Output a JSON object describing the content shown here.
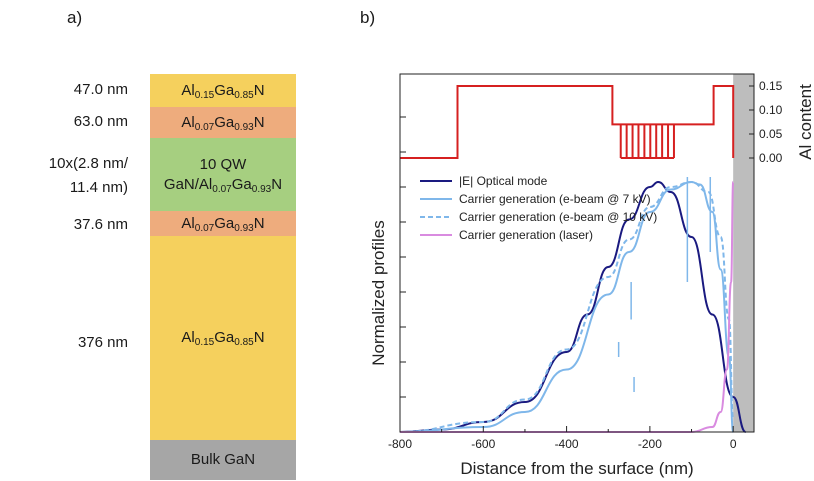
{
  "panel_a": {
    "label": "a)",
    "layers": [
      {
        "thickness": "47.0 nm",
        "material": "Al",
        "sub1": "0.15",
        "mid": "Ga",
        "sub2": "0.85",
        "end": "N",
        "color": "#f5d05d"
      },
      {
        "thickness": "63.0 nm",
        "material": "Al",
        "sub1": "0.07",
        "mid": "Ga",
        "sub2": "0.93",
        "end": "N",
        "color": "#eeac7d"
      },
      {
        "thickness_line1": "10x(2.8 nm/",
        "thickness_line2": "11.4 nm)",
        "qw_line1": "10 QW",
        "qw_line2a": "GaN/Al",
        "qw_sub1": "0.07",
        "qw_mid": "Ga",
        "qw_sub2": "0.93",
        "qw_end": "N",
        "color": "#a6cf80"
      },
      {
        "thickness": "37.6 nm",
        "material": "Al",
        "sub1": "0.07",
        "mid": "Ga",
        "sub2": "0.93",
        "end": "N",
        "color": "#eeac7d"
      },
      {
        "thickness": "376 nm",
        "material": "Al",
        "sub1": "0.15",
        "mid": "Ga",
        "sub2": "0.85",
        "end": "N",
        "color": "#f5d05d"
      },
      {
        "material_full": "Bulk GaN",
        "color": "#a6a6a6"
      }
    ]
  },
  "panel_b": {
    "label": "b)",
    "xlabel": "Distance from the surface (nm)",
    "ylabel": "Normalized profiles",
    "y2label": "Al content",
    "xticks": [
      "-800",
      "-600",
      "-400",
      "-200",
      "0"
    ],
    "y2ticks": [
      "0.15",
      "0.10",
      "0.05",
      "0.00"
    ],
    "legend": [
      {
        "label": "|E| Optical mode",
        "color": "#1a1a80",
        "dash": false
      },
      {
        "label": "Carrier generation (e-beam @ 7 kV)",
        "color": "#7fb7ea",
        "dash": false
      },
      {
        "label": "Carrier generation (e-beam @ 10 kV)",
        "color": "#7fb7ea",
        "dash": true
      },
      {
        "label": "Carrier generation (laser)",
        "color": "#d98be0",
        "dash": false
      }
    ]
  },
  "chart_data": {
    "type": "line",
    "xlabel": "Distance from the surface (nm)",
    "ylabel": "Normalized profiles",
    "y2label": "Al content",
    "xlim": [
      -800,
      50
    ],
    "ylim": [
      0,
      1
    ],
    "y2lim": [
      0,
      0.15
    ],
    "series": [
      {
        "name": "Al content",
        "axis": "y2",
        "color": "#d62020",
        "x": [
          -800,
          -662,
          -662,
          -290,
          -290,
          -120,
          -120,
          -47,
          -47,
          0,
          0
        ],
        "y": [
          0.0,
          0.0,
          0.15,
          0.15,
          0.07,
          0.07,
          0.07,
          0.07,
          0.15,
          0.15,
          0.0
        ]
      },
      {
        "name": "|E| Optical mode",
        "color": "#1a1a80",
        "x": [
          -800,
          -700,
          -600,
          -500,
          -400,
          -350,
          -300,
          -250,
          -200,
          -180,
          -150,
          -100,
          -50,
          0,
          30
        ],
        "y": [
          0.0,
          0.01,
          0.04,
          0.12,
          0.32,
          0.47,
          0.66,
          0.85,
          0.98,
          1.0,
          0.96,
          0.78,
          0.47,
          0.14,
          0.0
        ]
      },
      {
        "name": "Carrier generation (e-beam @ 7 kV)",
        "color": "#7fb7ea",
        "x": [
          -800,
          -600,
          -500,
          -400,
          -300,
          -250,
          -200,
          -150,
          -100,
          -80,
          -50,
          -30,
          -10,
          0
        ],
        "y": [
          0.0,
          0.02,
          0.08,
          0.25,
          0.55,
          0.72,
          0.88,
          0.97,
          1.0,
          0.99,
          0.88,
          0.65,
          0.3,
          0.0
        ]
      },
      {
        "name": "Carrier generation (e-beam @ 10 kV)",
        "color": "#7fb7ea",
        "dash": true,
        "x": [
          -800,
          -600,
          -500,
          -400,
          -300,
          -250,
          -200,
          -150,
          -100,
          -60,
          -30,
          -10,
          0
        ],
        "y": [
          0.0,
          0.04,
          0.13,
          0.33,
          0.62,
          0.77,
          0.9,
          0.98,
          1.0,
          0.96,
          0.78,
          0.45,
          0.05
        ]
      },
      {
        "name": "Carrier generation (laser)",
        "color": "#d98be0",
        "x": [
          -800,
          -100,
          -50,
          -30,
          -15,
          -5,
          0
        ],
        "y": [
          0.0,
          0.0,
          0.02,
          0.08,
          0.25,
          0.6,
          1.0
        ]
      }
    ]
  }
}
